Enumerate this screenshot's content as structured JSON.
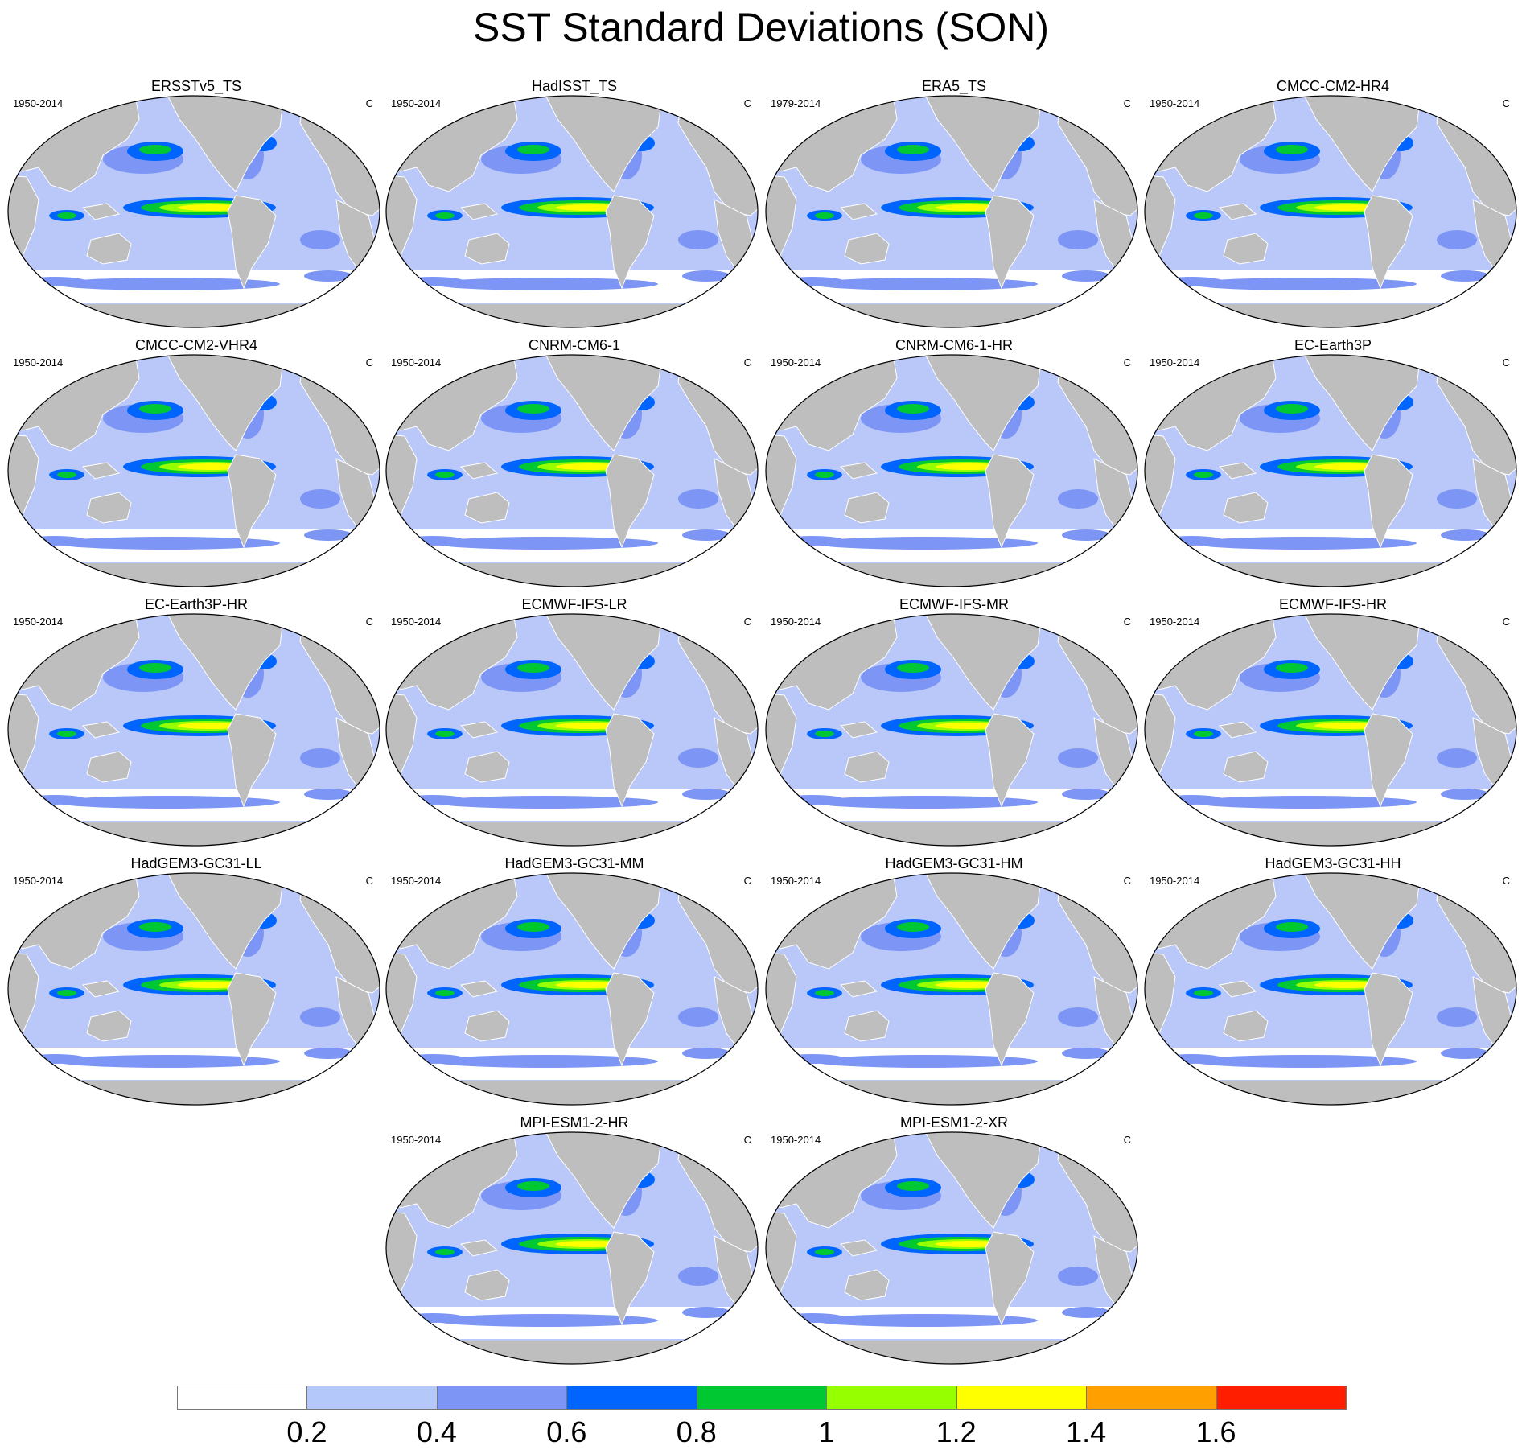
{
  "title": "SST Standard Deviations (SON)",
  "colors": {
    "land": "#bebebe",
    "ocean_base": "#b9c8f8",
    "coast": "#ffffff",
    "frame": "#000000"
  },
  "panels": [
    {
      "name": "ERSSTv5_TS",
      "period": "1950-2014",
      "units": "C"
    },
    {
      "name": "HadISST_TS",
      "period": "1950-2014",
      "units": "C"
    },
    {
      "name": "ERA5_TS",
      "period": "1979-2014",
      "units": "C"
    },
    {
      "name": "CMCC-CM2-HR4",
      "period": "1950-2014",
      "units": "C"
    },
    {
      "name": "CMCC-CM2-VHR4",
      "period": "1950-2014",
      "units": "C"
    },
    {
      "name": "CNRM-CM6-1",
      "period": "1950-2014",
      "units": "C"
    },
    {
      "name": "CNRM-CM6-1-HR",
      "period": "1950-2014",
      "units": "C"
    },
    {
      "name": "EC-Earth3P",
      "period": "1950-2014",
      "units": "C"
    },
    {
      "name": "EC-Earth3P-HR",
      "period": "1950-2014",
      "units": "C"
    },
    {
      "name": "ECMWF-IFS-LR",
      "period": "1950-2014",
      "units": "C"
    },
    {
      "name": "ECMWF-IFS-MR",
      "period": "1950-2014",
      "units": "C"
    },
    {
      "name": "ECMWF-IFS-HR",
      "period": "1950-2014",
      "units": "C"
    },
    {
      "name": "HadGEM3-GC31-LL",
      "period": "1950-2014",
      "units": "C"
    },
    {
      "name": "HadGEM3-GC31-MM",
      "period": "1950-2014",
      "units": "C"
    },
    {
      "name": "HadGEM3-GC31-HM",
      "period": "1950-2014",
      "units": "C"
    },
    {
      "name": "HadGEM3-GC31-HH",
      "period": "1950-2014",
      "units": "C"
    },
    {
      "name": "MPI-ESM1-2-HR",
      "period": "1950-2014",
      "units": "C"
    },
    {
      "name": "MPI-ESM1-2-XR",
      "period": "1950-2014",
      "units": "C"
    }
  ],
  "colorbar": {
    "colors": [
      "#ffffff",
      "#b4c8fa",
      "#7d96f5",
      "#0064ff",
      "#00c832",
      "#96ff00",
      "#ffff00",
      "#ffa000",
      "#ff1e00"
    ],
    "labels": [
      "0.2",
      "0.4",
      "0.6",
      "0.8",
      "1",
      "1.2",
      "1.4",
      "1.6"
    ]
  }
}
